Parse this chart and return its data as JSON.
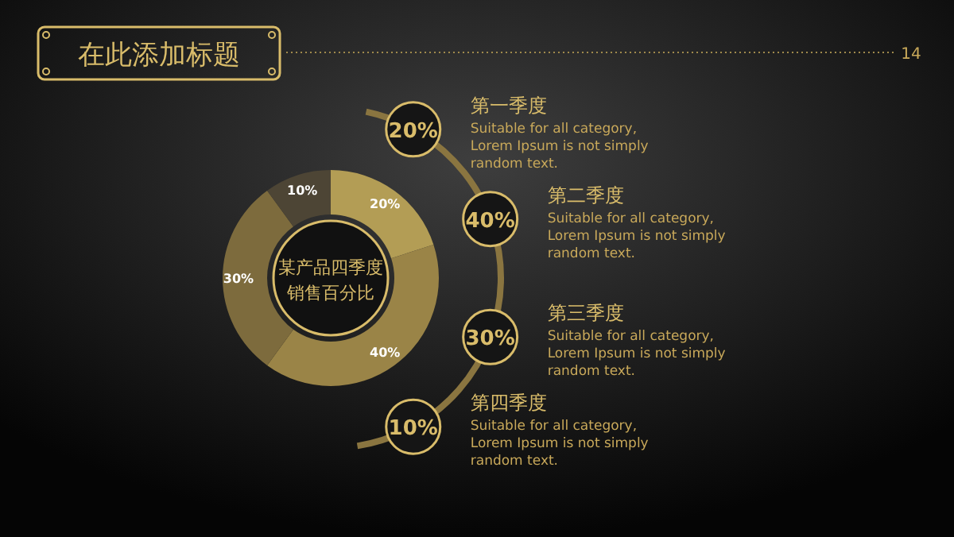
{
  "chart_data": {
    "type": "donut",
    "title": "在此添加标题",
    "subtitle": "某产品四季度销售百分比",
    "categories": [
      null,
      null,
      null,
      null
    ],
    "values": [
      20,
      40,
      30,
      10
    ],
    "value_labels": [
      "20%",
      "40%",
      "30%",
      "10%"
    ],
    "colors": [
      "#b39d55",
      "#9a8447",
      "#7d6b3d",
      "#4d4535"
    ],
    "annotations": [
      "第一季度",
      "Suitable for all category, Lorem Ipsum is not simply random text.",
      "第二季度",
      "Suitable for all category, Lorem Ipsum is not simply random text.",
      "第三季度",
      "Suitable for all category, Lorem Ipsum is not simply random text.",
      "第四季度",
      "Suitable for all category, Lorem Ipsum is not simply random text.",
      "14"
    ]
  }
}
